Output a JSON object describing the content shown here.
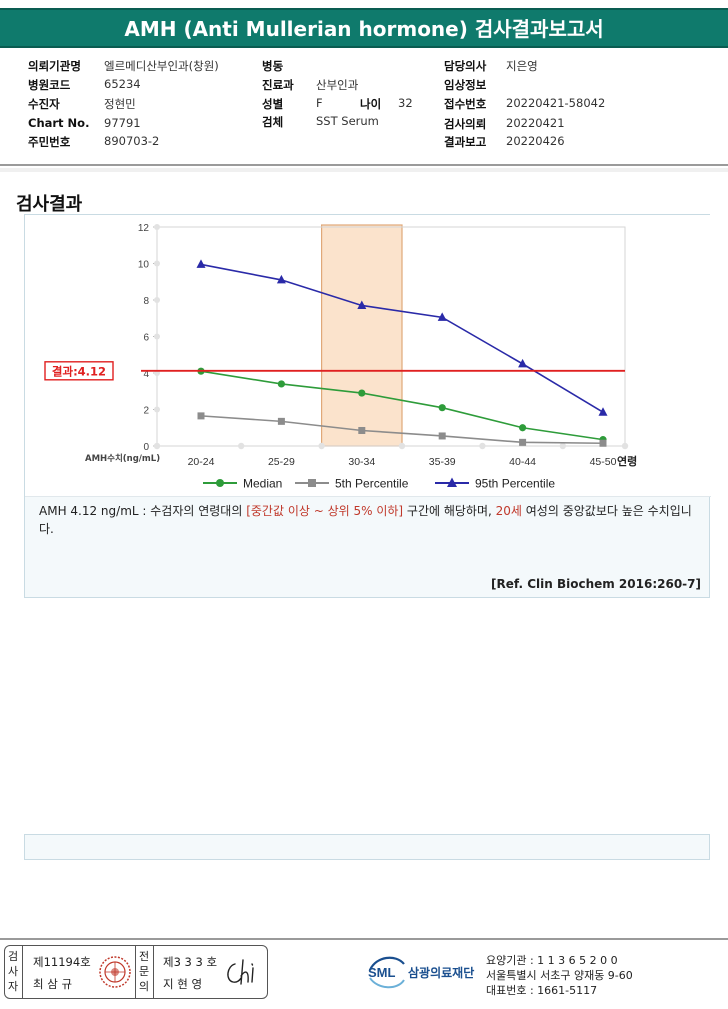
{
  "title": "AMH (Anti Mullerian hormone) 검사결과보고서",
  "info": {
    "institution_label": "의뢰기관명",
    "institution_value": "엘르메디산부인과(창원)",
    "hospital_code_label": "병원코드",
    "hospital_code_value": "65234",
    "patient_label": "수진자",
    "patient_value": "정현민",
    "chart_label": "Chart No.",
    "chart_value": "97791",
    "resident_label": "주민번호",
    "resident_value": "890703-2",
    "ward_label": "병동",
    "ward_value": "",
    "dept_label": "진료과",
    "dept_value": "산부인과",
    "sex_label": "성별",
    "sex_value": "F",
    "age_label": "나이",
    "age_value": "32",
    "specimen_label": "검체",
    "specimen_value": "SST Serum",
    "doctor_label": "담당의사",
    "doctor_value": "지은영",
    "clinical_label": "임상정보",
    "clinical_value": "",
    "receipt_label": "접수번호",
    "receipt_value": "20220421-58042",
    "request_label": "검사의뢰",
    "request_value": "20220421",
    "report_label": "결과보고",
    "report_value": "20220426"
  },
  "section_title": "검사결과",
  "chart_data": {
    "type": "line",
    "categories": [
      "20-24",
      "25-29",
      "30-34",
      "35-39",
      "40-44",
      "45-50"
    ],
    "xlabel": "연령",
    "ylabel": "AMH수치(ng/mL)",
    "ylim": [
      0,
      12
    ],
    "yticks": [
      "0",
      "2",
      "4",
      "6",
      "8",
      "10",
      "12"
    ],
    "highlight_category": "30-34",
    "result_line": {
      "value": 4.12,
      "label": "결과:4.12",
      "color": "#e02020"
    },
    "series": [
      {
        "name": "Median",
        "values": [
          4.1,
          3.4,
          2.9,
          2.1,
          1.0,
          0.35
        ],
        "color": "#2e9c3a",
        "marker": "circle"
      },
      {
        "name": "5th Percentile",
        "values": [
          1.65,
          1.35,
          0.85,
          0.55,
          0.2,
          0.15
        ],
        "color": "#8c8c8c",
        "marker": "square"
      },
      {
        "name": "95th Percentile",
        "values": [
          9.95,
          9.1,
          7.7,
          7.05,
          4.5,
          1.85
        ],
        "color": "#2a2aa8",
        "marker": "triangle"
      }
    ],
    "legend_position": "bottom",
    "grid": false
  },
  "comment": {
    "part1": "AMH  4.12 ng/mL : 수검자의 연령대의 ",
    "part2": "[중간값 이상 ~ 상위 5% 이하]",
    "part3": " 구간에 해당하며, ",
    "part4": "20세",
    "part5": " 여성의 중앙값보다 높은 수치입니다."
  },
  "reference": "[Ref. Clin Biochem 2016:260-7]",
  "footer": {
    "label1": "검사자",
    "no1": "제11194호",
    "name1": "최 삼 규",
    "label2": "전문의",
    "no2": "제3 3 3 호",
    "name2": "지 현 영",
    "signature": "Chi",
    "logo_abbr": "SML",
    "logo_name": "삼광의료재단",
    "addr1": "요양기관 : 1 1 3 6 5 2 0 0",
    "addr2": "서울특별시 서초구 양재동 9-60",
    "addr3": "대표번호 : 1661-5117"
  }
}
